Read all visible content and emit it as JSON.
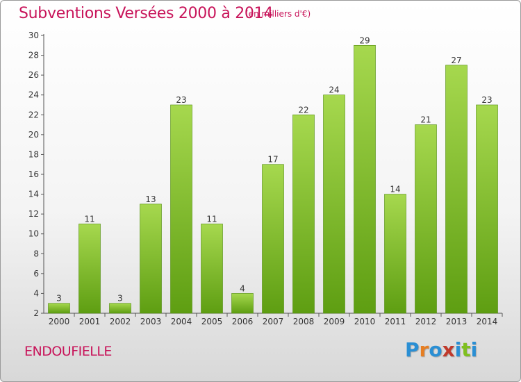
{
  "title": "Subventions Versées 2000 à 2014",
  "subtitle": "(en milliers d'€)",
  "commune": "ENDOUFIELLE",
  "logo": {
    "letters": [
      "P",
      "r",
      "o",
      "x",
      "i",
      "t",
      "i"
    ],
    "colors": [
      "#2a8fd4",
      "#e67e22",
      "#2a8fd4",
      "#c0392b",
      "#2a8fd4",
      "#7fbf1f",
      "#2a8fd4"
    ]
  },
  "colors": {
    "title": "#c8145a",
    "bar_top": "#a6d84e",
    "bar_bottom": "#5e9e12",
    "bar_border": "#4f8a0c"
  },
  "chart_data": {
    "type": "bar",
    "title": "Subventions Versées 2000 à 2014",
    "subtitle": "(en milliers d'€)",
    "categories": [
      "2000",
      "2001",
      "2002",
      "2003",
      "2004",
      "2005",
      "2006",
      "2007",
      "2008",
      "2009",
      "2010",
      "2011",
      "2012",
      "2013",
      "2014"
    ],
    "values": [
      3,
      11,
      3,
      13,
      23,
      11,
      4,
      17,
      22,
      24,
      29,
      14,
      21,
      27,
      23
    ],
    "ylim": [
      2,
      30
    ],
    "yticks": [
      2,
      4,
      6,
      8,
      10,
      12,
      14,
      16,
      18,
      20,
      22,
      24,
      26,
      28,
      30
    ],
    "grid": false,
    "data_labels": true
  }
}
